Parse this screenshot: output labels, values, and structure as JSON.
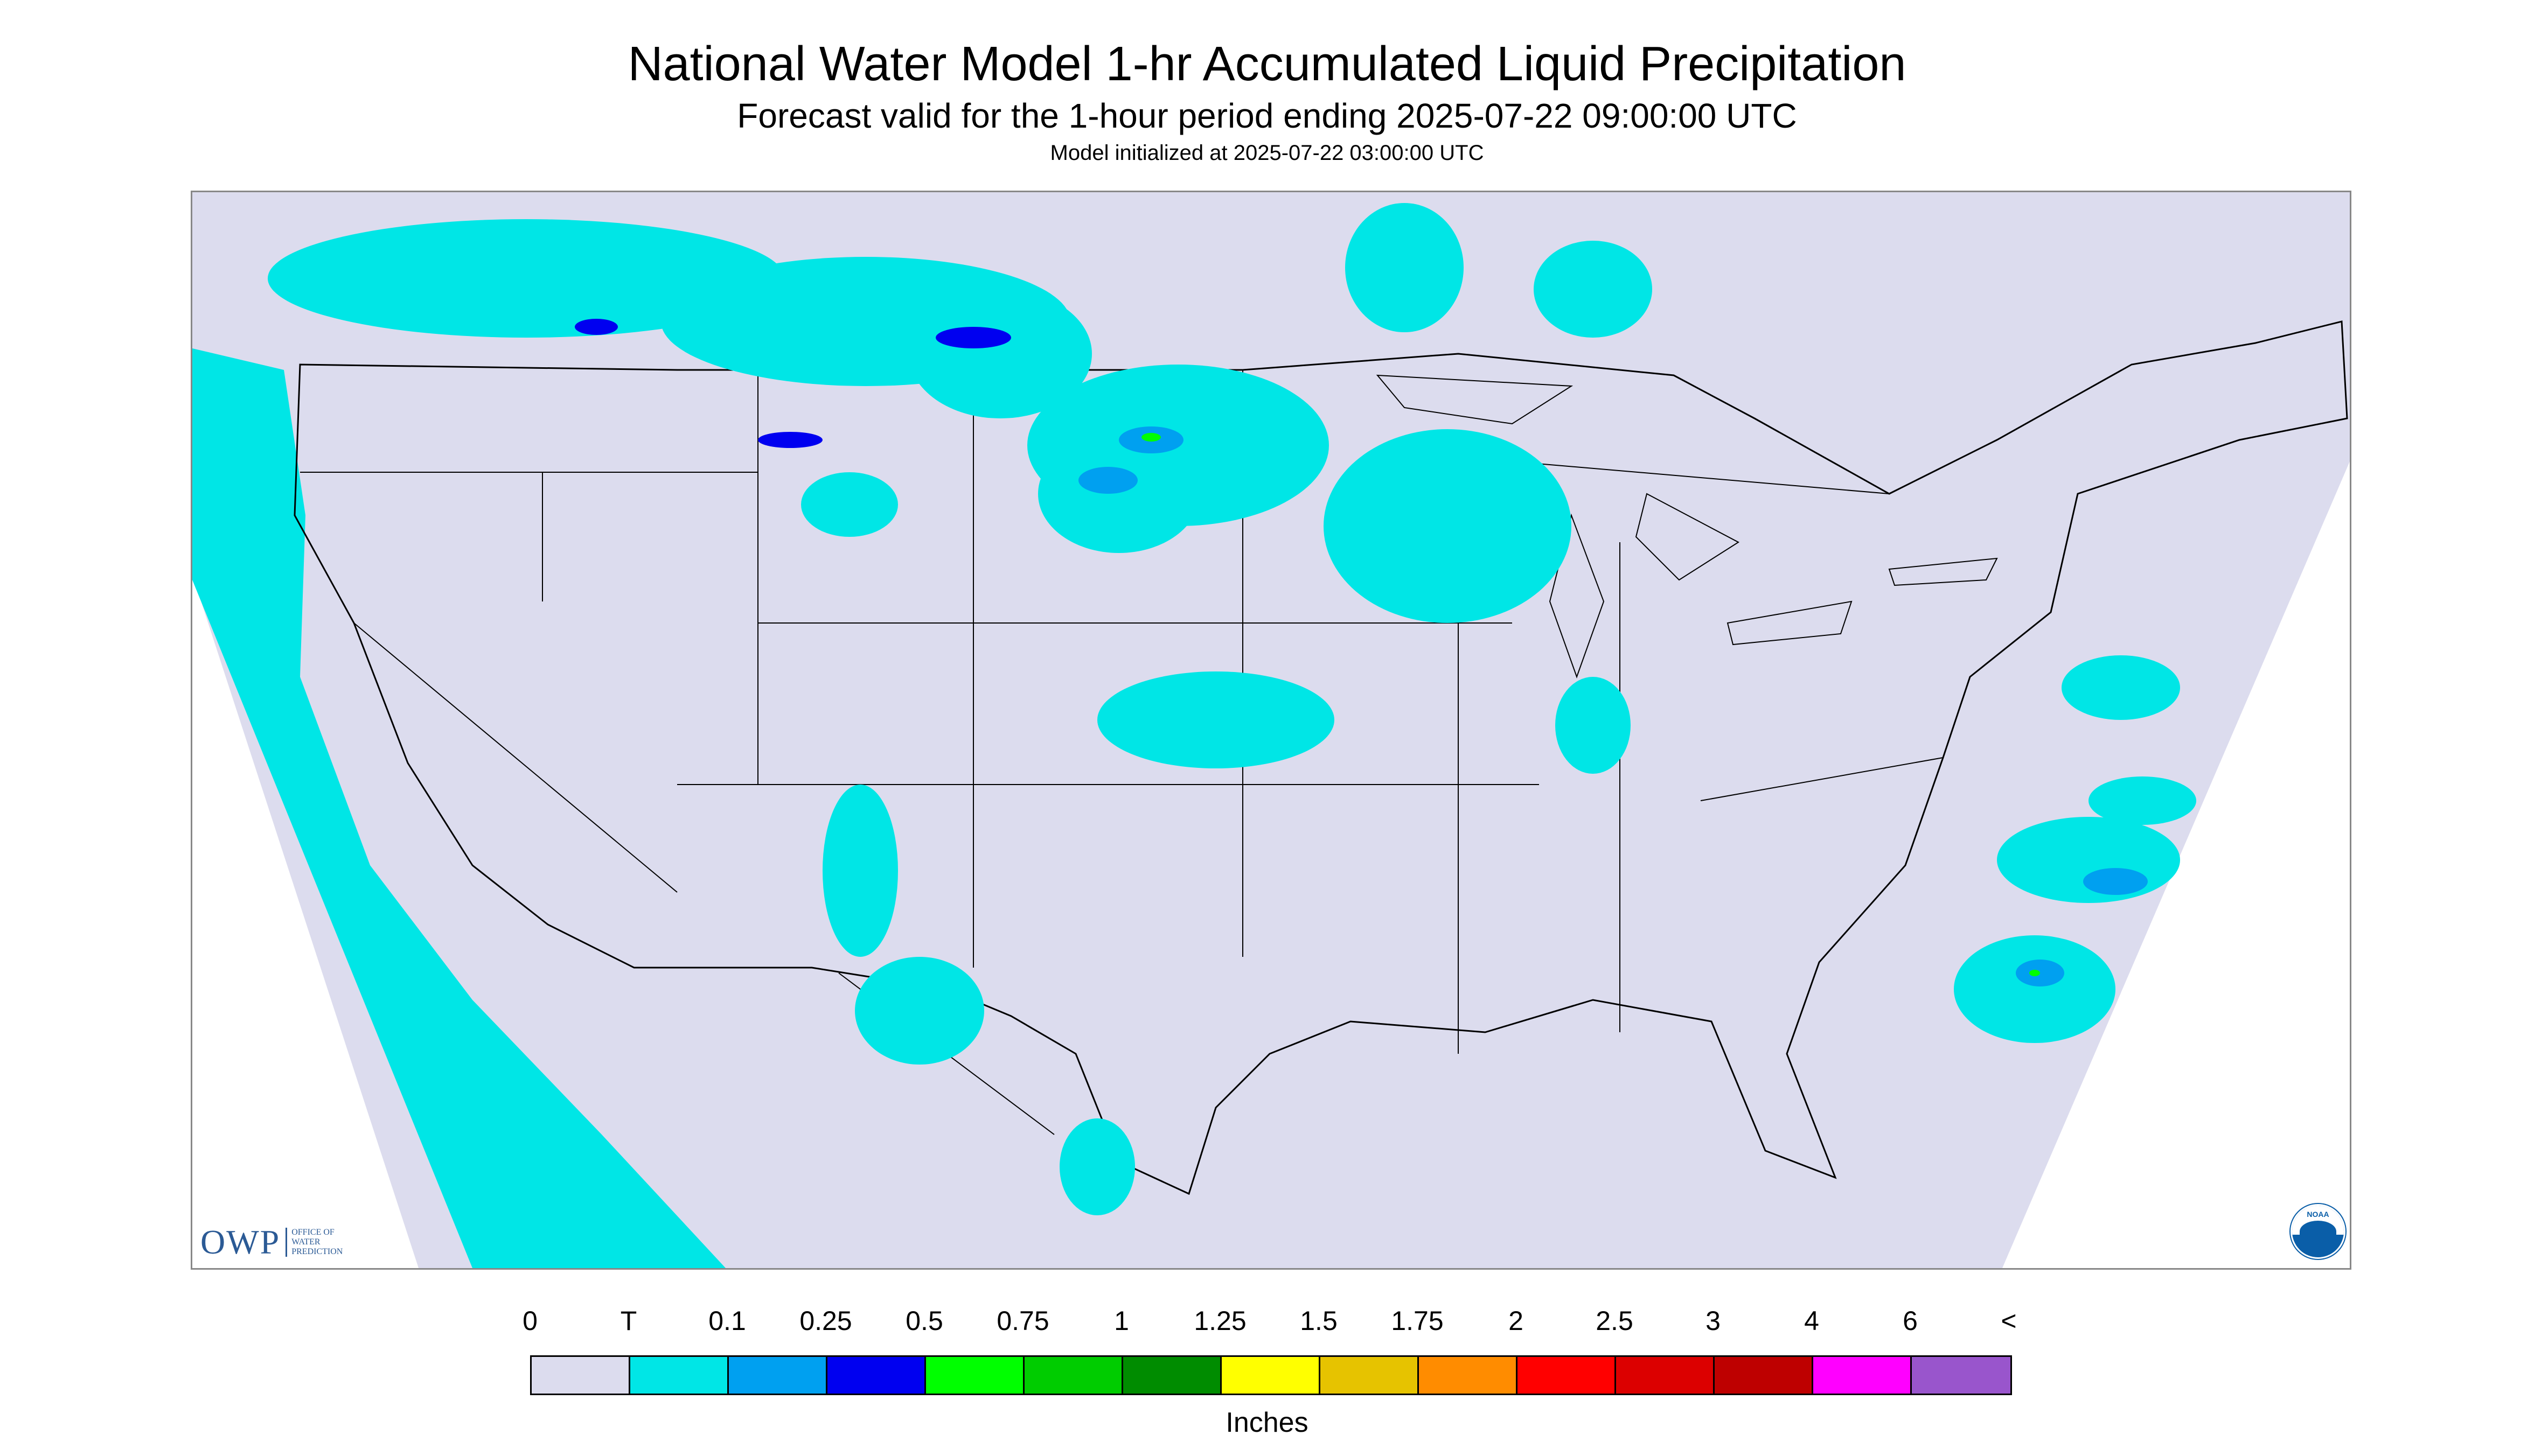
{
  "title": "National Water Model 1-hr Accumulated Liquid Precipitation",
  "subtitle": "Forecast valid for the 1-hour period ending 2025-07-22 09:00:00 UTC",
  "init_text": "Model initialized at 2025-07-22 03:00:00 UTC",
  "legend": {
    "labels": [
      "0",
      "T",
      "0.1",
      "0.25",
      "0.5",
      "0.75",
      "1",
      "1.25",
      "1.5",
      "1.75",
      "2",
      "2.5",
      "3",
      "4",
      "6",
      "<"
    ],
    "colors": [
      "#dcdcee",
      "#00e6e6",
      "#00a0f0",
      "#0000f0",
      "#00ff00",
      "#00cc00",
      "#008c00",
      "#ffff00",
      "#e6c300",
      "#ff8c00",
      "#ff0000",
      "#dc0000",
      "#be0000",
      "#ff00ff",
      "#9955cc"
    ],
    "units": "Inches"
  },
  "logos": {
    "owp_mark": "OWP",
    "owp_lines": [
      "OFFICE OF",
      "WATER",
      "PREDICTION"
    ],
    "noaa": "NOAA"
  },
  "map": {
    "background_color": "#dcdcee",
    "trace_color": "#00e6e6",
    "heavier_color": "#00a0f0",
    "heaviest_color": "#0000f0"
  }
}
